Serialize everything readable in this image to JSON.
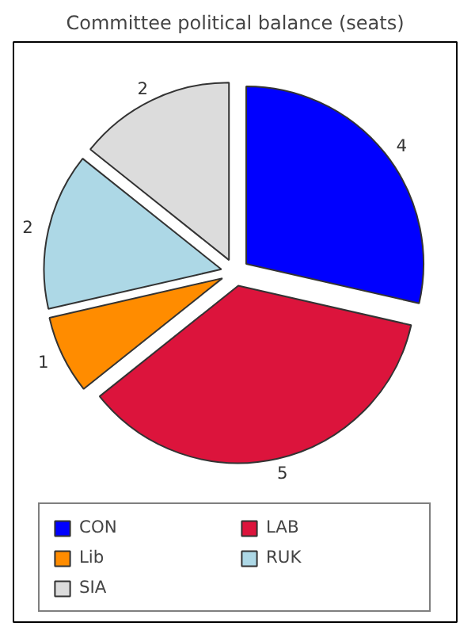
{
  "chart_data": {
    "type": "pie",
    "title": "Committee political balance (seats)",
    "categories": [
      "CON",
      "LAB",
      "Lib",
      "RUK",
      "SIA"
    ],
    "values": [
      4,
      5,
      1,
      2,
      2
    ],
    "colors": [
      "#0000ff",
      "#dc143c",
      "#ff8c00",
      "#add8e6",
      "#dcdcdc"
    ],
    "data_labels": true,
    "legend": "bottom"
  }
}
